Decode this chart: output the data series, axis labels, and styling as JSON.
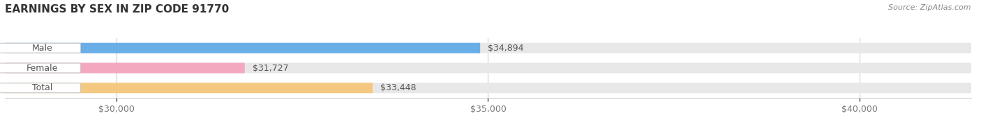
{
  "title": "EARNINGS BY SEX IN ZIP CODE 91770",
  "source": "Source: ZipAtlas.com",
  "categories": [
    "Male",
    "Female",
    "Total"
  ],
  "values": [
    34894,
    31727,
    33448
  ],
  "bar_colors": [
    "#6aaee8",
    "#f4a8c0",
    "#f5c882"
  ],
  "bar_bg_color": "#e8e8e8",
  "bg_color": "#ffffff",
  "xmin": 28500,
  "xmax": 41500,
  "xticks": [
    30000,
    35000,
    40000
  ],
  "xtick_labels": [
    "$30,000",
    "$35,000",
    "$40,000"
  ],
  "title_fontsize": 11,
  "label_fontsize": 9,
  "value_fontsize": 9,
  "source_fontsize": 8,
  "bar_height": 0.52
}
